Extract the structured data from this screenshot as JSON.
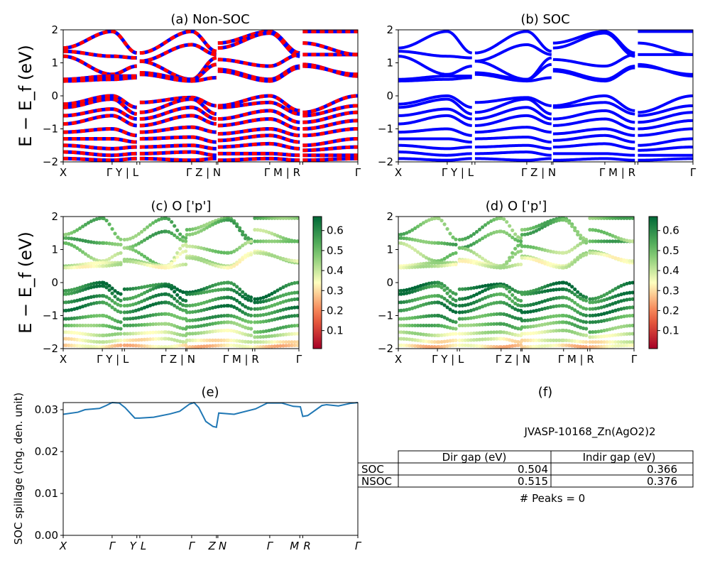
{
  "kpoints": {
    "labels": [
      "X",
      "Γ",
      "Y",
      "L",
      "Γ",
      "Z",
      "N",
      "Γ",
      "M",
      "R",
      "Γ"
    ],
    "path_fraction": [
      0,
      0.166,
      0.25,
      0.26,
      0.436,
      0.52,
      0.525,
      0.701,
      0.803,
      0.813,
      1.0
    ],
    "segments": [
      [
        0,
        2
      ],
      [
        3,
        5
      ],
      [
        6,
        8
      ],
      [
        9,
        10
      ]
    ],
    "axis_labels_ab": [
      "X",
      "Γ  Y | L",
      "Γ  Z | N",
      "Γ   M | R",
      "Γ"
    ],
    "axis_labels_cd": [
      "X",
      "Γ Y | L",
      "Γ Z | N",
      "Γ  M | R",
      "Γ"
    ],
    "axis_labels_e": [
      "X",
      "Γ",
      "Y",
      "L",
      "Γ",
      "Z",
      "N",
      "Γ",
      "M",
      "R",
      "Γ"
    ]
  },
  "chart_data": [
    {
      "type": "line",
      "title": "(a) Non-SOC",
      "ylabel": "E − E_f (eV)",
      "ylim": [
        -2,
        2
      ],
      "yticks": [
        "2",
        "1",
        "0",
        "−1",
        "−2"
      ],
      "colors": {
        "line": "#ff0000",
        "dash": "#0000ff"
      },
      "bands": [
        [
          1.45,
          1.95,
          1.3,
          1.3,
          1.95,
          1.35,
          1.6,
          1.95,
          1.3,
          1.95,
          1.95
        ],
        [
          1.35,
          1.2,
          1.15,
          1.05,
          1.55,
          1.25,
          1.45,
          1.9,
          1.2,
          1.25,
          1.25
        ],
        [
          1.2,
          0.65,
          0.9,
          1.05,
          0.5,
          1.15,
          1.1,
          0.9,
          1.25,
          1.6,
          1.25
        ],
        [
          0.5,
          0.6,
          0.6,
          0.7,
          0.5,
          0.95,
          0.8,
          0.5,
          0.9,
          0.95,
          0.6
        ],
        [
          0.45,
          0.5,
          0.55,
          0.65,
          0.45,
          0.55,
          0.75,
          0.45,
          0.85,
          0.9,
          0.65
        ],
        [
          -0.25,
          0.0,
          -0.35,
          -0.2,
          -0.05,
          -0.3,
          -0.3,
          0.0,
          -0.45,
          -0.5,
          0.0
        ],
        [
          -0.35,
          -0.1,
          -0.55,
          -0.5,
          -0.1,
          -0.55,
          -0.35,
          -0.2,
          -0.55,
          -0.6,
          -0.3
        ],
        [
          -0.6,
          -0.4,
          -0.7,
          -0.7,
          -0.35,
          -0.7,
          -0.7,
          -0.45,
          -0.8,
          -0.8,
          -0.5
        ],
        [
          -0.85,
          -0.6,
          -0.9,
          -0.9,
          -0.6,
          -0.85,
          -0.9,
          -0.7,
          -1.0,
          -1.0,
          -0.75
        ],
        [
          -1.1,
          -1.0,
          -1.2,
          -1.1,
          -0.95,
          -1.1,
          -1.15,
          -1.0,
          -1.2,
          -1.2,
          -1.0
        ],
        [
          -1.3,
          -1.3,
          -1.4,
          -1.3,
          -1.25,
          -1.4,
          -1.35,
          -1.2,
          -1.4,
          -1.5,
          -1.3
        ],
        [
          -1.5,
          -1.6,
          -1.55,
          -1.55,
          -1.5,
          -1.6,
          -1.55,
          -1.45,
          -1.6,
          -1.65,
          -1.55
        ],
        [
          -1.7,
          -1.8,
          -1.75,
          -1.75,
          -1.7,
          -1.8,
          -1.75,
          -1.75,
          -1.8,
          -1.8,
          -1.8
        ],
        [
          -1.9,
          -1.95,
          -1.9,
          -1.9,
          -1.95,
          -1.9,
          -1.95,
          -1.9,
          -1.95,
          -1.95,
          -1.9
        ]
      ]
    },
    {
      "type": "line",
      "title": "(b) SOC",
      "ylim": [
        -2,
        2
      ],
      "yticks": [
        "2",
        "1",
        "0",
        "−1",
        "−2"
      ],
      "colors": {
        "line": "#0000ff"
      }
    },
    {
      "type": "scatter",
      "title": "(c)  O ['p']",
      "ylabel": "E − E_f (eV)",
      "ylim": [
        -2,
        2
      ],
      "yticks": [
        "2",
        "1",
        "0",
        "−1",
        "−2"
      ],
      "colormap": "RdYlGn",
      "colorbar": {
        "range": [
          0.01,
          0.67
        ],
        "ticks": [
          "0.6",
          "0.5",
          "0.4",
          "0.3",
          "0.2",
          "0.1"
        ]
      },
      "band_weights": [
        0.5,
        0.52,
        0.45,
        0.4,
        0.38,
        0.62,
        0.6,
        0.58,
        0.6,
        0.55,
        0.5,
        0.4,
        0.35,
        0.3
      ]
    },
    {
      "type": "scatter",
      "title": "(d) O ['p']",
      "ylim": [
        -2,
        2
      ],
      "yticks": [
        "2",
        "1",
        "0",
        "−1",
        "−2"
      ],
      "colormap": "RdYlGn",
      "colorbar": {
        "range": [
          0.01,
          0.67
        ],
        "ticks": [
          "0.6",
          "0.5",
          "0.4",
          "0.3",
          "0.2",
          "0.1"
        ]
      }
    },
    {
      "type": "line",
      "title": "(e)",
      "ylabel": "SOC spillage (chg. den. unit)",
      "ylim": [
        0,
        0.0317
      ],
      "yticks": [
        "0.03",
        "0.02",
        "0.01",
        "0.00"
      ],
      "colors": {
        "line": "#1f77b4"
      },
      "x": [
        0,
        0.05,
        0.074,
        0.123,
        0.146,
        0.166,
        0.19,
        0.21,
        0.243,
        0.259,
        0.307,
        0.363,
        0.395,
        0.428,
        0.444,
        0.46,
        0.484,
        0.508,
        0.52,
        0.528,
        0.58,
        0.653,
        0.693,
        0.741,
        0.781,
        0.805,
        0.813,
        0.83,
        0.878,
        0.894,
        0.934,
        0.974,
        1.0
      ],
      "y": [
        0.0289,
        0.0294,
        0.03,
        0.0303,
        0.031,
        0.0317,
        0.0316,
        0.0305,
        0.028,
        0.028,
        0.0282,
        0.029,
        0.0296,
        0.0313,
        0.0317,
        0.0305,
        0.0272,
        0.026,
        0.0258,
        0.0292,
        0.0289,
        0.0302,
        0.0316,
        0.0316,
        0.0308,
        0.0307,
        0.0284,
        0.0286,
        0.031,
        0.0312,
        0.0309,
        0.0315,
        0.0317
      ]
    }
  ],
  "panel_f": {
    "title": "(f)",
    "material": "JVASP-10168_Zn(AgO2)2",
    "table": {
      "headers": [
        "Dir gap (eV)",
        "Indir gap (eV)"
      ],
      "rows": [
        {
          "label": "SOC",
          "dir": "0.504",
          "indir": "0.366"
        },
        {
          "label": "NSOC",
          "dir": "0.515",
          "indir": "0.376"
        }
      ]
    },
    "peaks": "# Peaks = 0"
  }
}
